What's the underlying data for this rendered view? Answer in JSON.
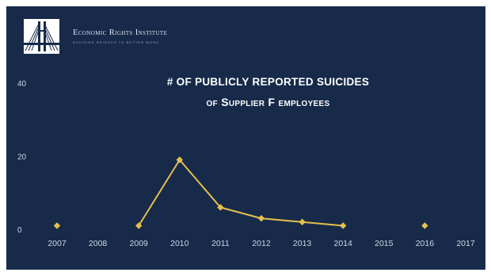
{
  "brand": {
    "name": "Economic Rights Institute",
    "tagline": "Building bridges to better work"
  },
  "colors": {
    "background": "#172a4a",
    "line": "#e3c04d",
    "text": "#ffffff",
    "axis_text": "#cfd6e2"
  },
  "chart_data": {
    "type": "line",
    "title": "# of publicly reported suicides",
    "subtitle": "of Supplier F employees",
    "categories": [
      "2007",
      "2008",
      "2009",
      "2010",
      "2011",
      "2012",
      "2013",
      "2014",
      "2015",
      "2016",
      "2017"
    ],
    "series": [
      {
        "values": [
          1,
          null,
          1,
          19,
          6,
          3,
          2,
          1,
          null,
          1,
          null
        ]
      }
    ],
    "y_ticks": [
      0,
      20,
      40
    ],
    "ylim": [
      0,
      40
    ],
    "grid": false,
    "legend": "none"
  }
}
